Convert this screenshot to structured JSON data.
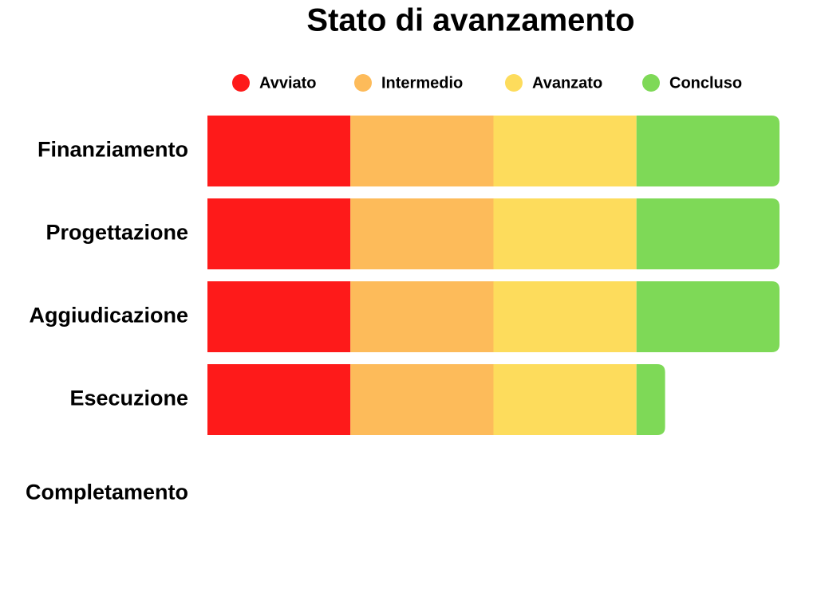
{
  "chart_data": {
    "type": "stacked-bar-horizontal",
    "title": "Stato di avanzamento",
    "categories": [
      "Finanziamento",
      "Progettazione",
      "Aggiudicazione",
      "Esecuzione",
      "Completamento"
    ],
    "series": [
      {
        "name": "Avviato",
        "color": "#fe1a1a",
        "values": [
          25,
          25,
          25,
          25,
          0
        ]
      },
      {
        "name": "Intermedio",
        "color": "#fdbb5a",
        "values": [
          25,
          25,
          25,
          25,
          0
        ]
      },
      {
        "name": "Avanzato",
        "color": "#fddc5c",
        "values": [
          25,
          25,
          25,
          25,
          0
        ]
      },
      {
        "name": "Concluso",
        "color": "#7ed957",
        "values": [
          25,
          25,
          25,
          5,
          0
        ]
      }
    ],
    "xlim": [
      0,
      100
    ],
    "legend": "top"
  }
}
